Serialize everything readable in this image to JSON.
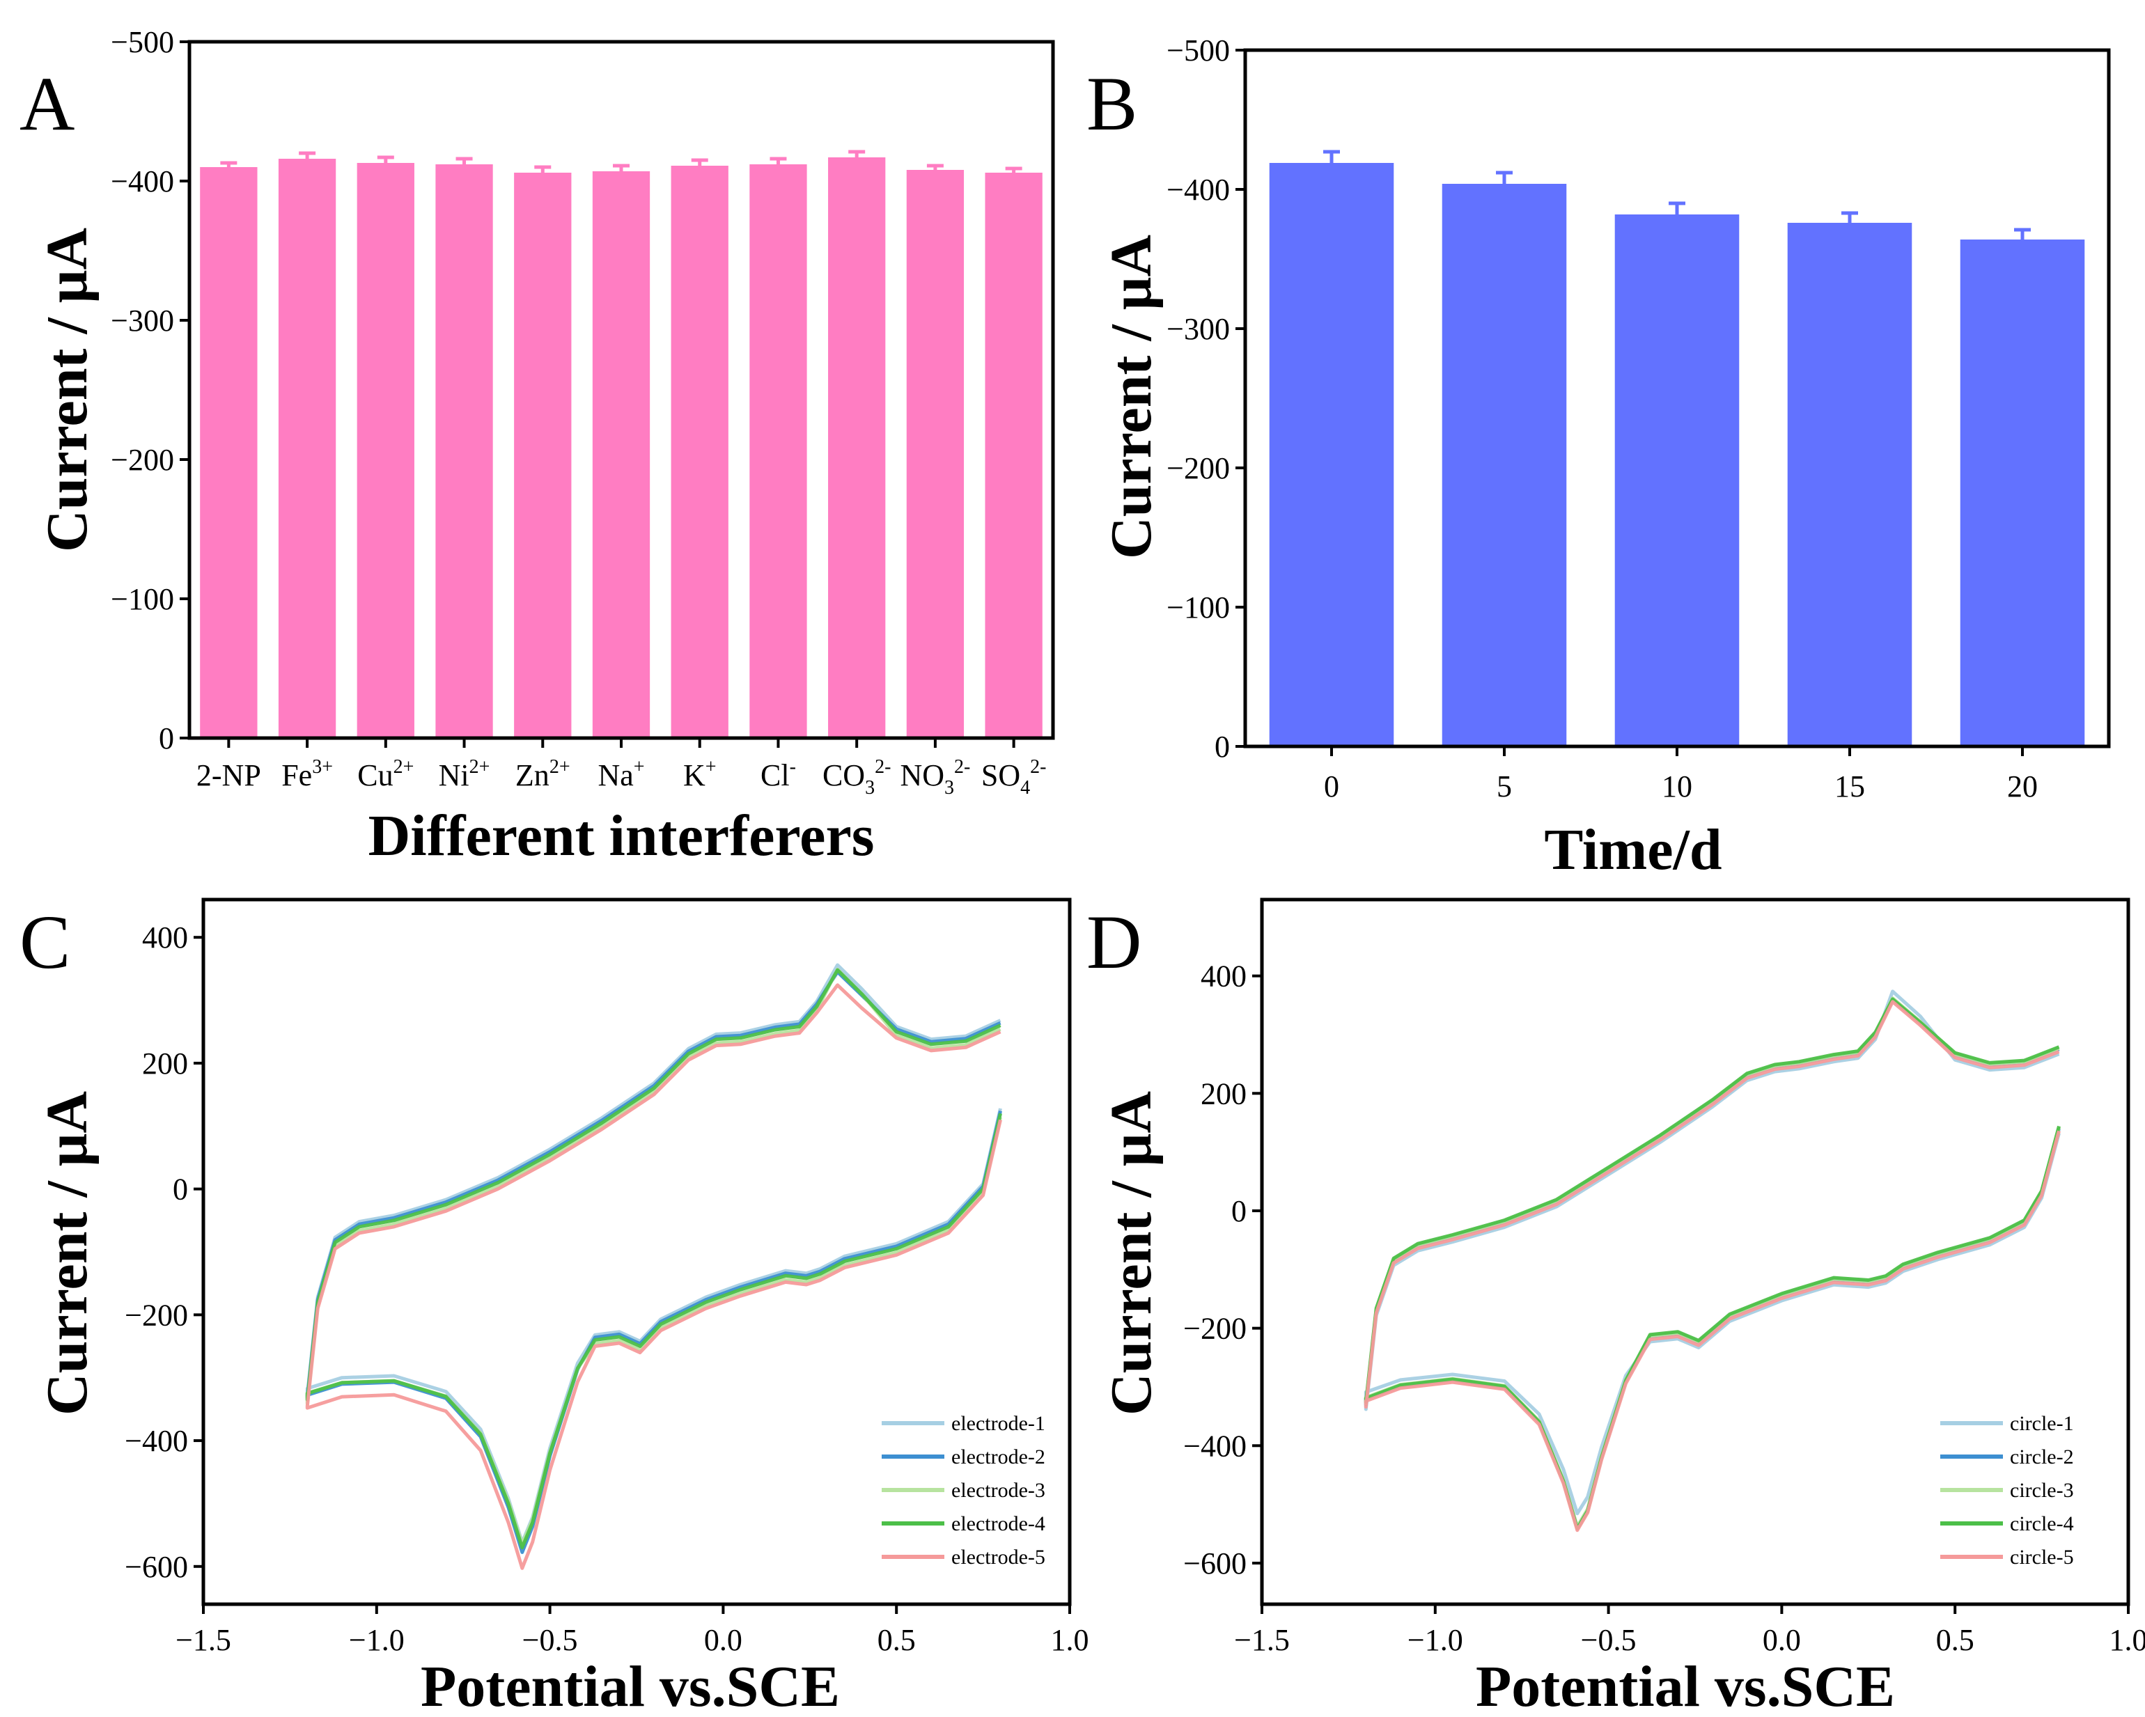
{
  "colors": {
    "panel_a_bar": "#ff7dc2",
    "panel_b_bar": "#6272ff",
    "series": [
      "#a6cfe3",
      "#3d8fd1",
      "#b7e39f",
      "#4cbf48",
      "#f59a9a"
    ]
  },
  "chart_data": [
    {
      "panel": "A",
      "type": "bar",
      "xlabel": "Different interferers",
      "ylabel": "Current / μA",
      "ylim": [
        0,
        -500
      ],
      "yticks": [
        0,
        -100,
        -200,
        -300,
        -400,
        -500
      ],
      "ytick_labels": [
        "0",
        "−100",
        "−200",
        "−300",
        "−400",
        "−500"
      ],
      "categories": [
        {
          "base": "2-NP",
          "sub": "",
          "sup": ""
        },
        {
          "base": "Fe",
          "sub": "",
          "sup": "3+"
        },
        {
          "base": "Cu",
          "sub": "",
          "sup": "2+"
        },
        {
          "base": "Ni",
          "sub": "",
          "sup": "2+"
        },
        {
          "base": "Zn",
          "sub": "",
          "sup": "2+"
        },
        {
          "base": "Na",
          "sub": "",
          "sup": "+"
        },
        {
          "base": "K",
          "sub": "",
          "sup": "+"
        },
        {
          "base": "Cl",
          "sub": "",
          "sup": "-"
        },
        {
          "base": "CO",
          "sub": "3",
          "sup": "2-"
        },
        {
          "base": "NO",
          "sub": "3",
          "sup": "2-"
        },
        {
          "base": "SO",
          "sub": "4",
          "sup": "2-"
        }
      ],
      "values": [
        -410,
        -416,
        -413,
        -412,
        -406,
        -407,
        -411,
        -412,
        -417,
        -408,
        -406
      ],
      "errors": [
        3,
        4,
        4,
        4,
        4,
        4,
        4,
        4,
        4,
        3,
        3
      ]
    },
    {
      "panel": "B",
      "type": "bar",
      "xlabel": "Time/d",
      "ylabel": "Current / μA",
      "ylim": [
        0,
        -500
      ],
      "yticks": [
        0,
        -100,
        -200,
        -300,
        -400,
        -500
      ],
      "ytick_labels": [
        "0",
        "−100",
        "−200",
        "−300",
        "−400",
        "−500"
      ],
      "categories": [
        "0",
        "5",
        "10",
        "15",
        "20"
      ],
      "values": [
        -419,
        -404,
        -382,
        -376,
        -364
      ],
      "errors": [
        8,
        8,
        8,
        7,
        7
      ]
    },
    {
      "panel": "C",
      "type": "line",
      "xlabel": "Potential vs.SCE",
      "ylabel": "Current / μA",
      "xlim": [
        -1.5,
        1.0
      ],
      "ylim": [
        -660,
        460
      ],
      "xticks": [
        -1.5,
        -1.0,
        -0.5,
        0.0,
        0.5,
        1.0
      ],
      "xtick_labels": [
        "−1.5",
        "−1.0",
        "−0.5",
        "0.0",
        "0.5",
        "1.0"
      ],
      "yticks": [
        -600,
        -400,
        -200,
        0,
        200,
        400
      ],
      "ytick_labels": [
        "−600",
        "−400",
        "−200",
        "0",
        "200",
        "400"
      ],
      "legend_position": "bottom-right",
      "series": [
        {
          "name": "electrode-1",
          "offset": 8,
          "peak_scale": 1.0
        },
        {
          "name": "electrode-2",
          "offset": 4,
          "peak_scale": 1.02
        },
        {
          "name": "electrode-3",
          "offset": -6,
          "peak_scale": 0.98
        },
        {
          "name": "electrode-4",
          "offset": 0,
          "peak_scale": 1.0
        },
        {
          "name": "electrode-5",
          "offset": -10,
          "peak_scale": 1.04
        }
      ],
      "cathodic_sweep": [
        [
          0.8,
          120
        ],
        [
          0.75,
          0
        ],
        [
          0.65,
          -60
        ],
        [
          0.5,
          -95
        ],
        [
          0.35,
          -115
        ],
        [
          0.28,
          -135
        ],
        [
          0.24,
          -142
        ],
        [
          0.18,
          -138
        ],
        [
          0.05,
          -160
        ],
        [
          -0.05,
          -180
        ],
        [
          -0.18,
          -215
        ],
        [
          -0.24,
          -250
        ],
        [
          -0.3,
          -235
        ],
        [
          -0.37,
          -240
        ],
        [
          -0.42,
          -285
        ],
        [
          -0.5,
          -420
        ],
        [
          -0.55,
          -530
        ],
        [
          -0.58,
          -570
        ],
        [
          -0.62,
          -500
        ],
        [
          -0.7,
          -390
        ],
        [
          -0.8,
          -330
        ],
        [
          -0.95,
          -305
        ],
        [
          -1.1,
          -308
        ],
        [
          -1.2,
          -325
        ]
      ],
      "anodic_sweep": [
        [
          -1.2,
          -335
        ],
        [
          -1.17,
          -180
        ],
        [
          -1.12,
          -85
        ],
        [
          -1.05,
          -60
        ],
        [
          -0.95,
          -50
        ],
        [
          -0.8,
          -25
        ],
        [
          -0.65,
          10
        ],
        [
          -0.5,
          55
        ],
        [
          -0.35,
          105
        ],
        [
          -0.2,
          160
        ],
        [
          -0.1,
          215
        ],
        [
          -0.02,
          238
        ],
        [
          0.05,
          240
        ],
        [
          0.15,
          253
        ],
        [
          0.22,
          258
        ],
        [
          0.27,
          290
        ],
        [
          0.33,
          348
        ],
        [
          0.4,
          310
        ],
        [
          0.5,
          250
        ],
        [
          0.6,
          230
        ],
        [
          0.7,
          235
        ],
        [
          0.8,
          260
        ]
      ]
    },
    {
      "panel": "D",
      "type": "line",
      "xlabel": "Potential vs.SCE",
      "ylabel": "Current / μA",
      "xlim": [
        -1.5,
        1.0
      ],
      "ylim": [
        -670,
        530
      ],
      "xticks": [
        -1.5,
        -1.0,
        -0.5,
        0.0,
        0.5,
        1.0
      ],
      "xtick_labels": [
        "−1.5",
        "−1.0",
        "−0.5",
        "0.0",
        "0.5",
        "1.0"
      ],
      "yticks": [
        -600,
        -400,
        -200,
        0,
        200,
        400
      ],
      "ytick_labels": [
        "−600",
        "−400",
        "−200",
        "0",
        "200",
        "400"
      ],
      "legend_position": "bottom-right",
      "series": [
        {
          "name": "circle-1",
          "offset": -8,
          "peak_scale": 0.94
        },
        {
          "name": "circle-2",
          "offset": 0,
          "peak_scale": 1.0
        },
        {
          "name": "circle-3",
          "offset": 2,
          "peak_scale": 1.0
        },
        {
          "name": "circle-4",
          "offset": 4,
          "peak_scale": 1.01
        },
        {
          "name": "circle-5",
          "offset": -4,
          "peak_scale": 1.0
        }
      ],
      "cathodic_sweep": [
        [
          0.8,
          140
        ],
        [
          0.75,
          30
        ],
        [
          0.7,
          -20
        ],
        [
          0.6,
          -50
        ],
        [
          0.45,
          -75
        ],
        [
          0.35,
          -95
        ],
        [
          0.3,
          -115
        ],
        [
          0.25,
          -122
        ],
        [
          0.15,
          -118
        ],
        [
          0.0,
          -145
        ],
        [
          -0.15,
          -180
        ],
        [
          -0.24,
          -225
        ],
        [
          -0.3,
          -210
        ],
        [
          -0.38,
          -215
        ],
        [
          -0.45,
          -290
        ],
        [
          -0.52,
          -420
        ],
        [
          -0.56,
          -510
        ],
        [
          -0.59,
          -540
        ],
        [
          -0.63,
          -460
        ],
        [
          -0.7,
          -360
        ],
        [
          -0.8,
          -300
        ],
        [
          -0.95,
          -288
        ],
        [
          -1.1,
          -298
        ],
        [
          -1.2,
          -320
        ]
      ],
      "anodic_sweep": [
        [
          -1.2,
          -330
        ],
        [
          -1.17,
          -170
        ],
        [
          -1.12,
          -85
        ],
        [
          -1.05,
          -60
        ],
        [
          -0.95,
          -45
        ],
        [
          -0.8,
          -20
        ],
        [
          -0.65,
          15
        ],
        [
          -0.5,
          70
        ],
        [
          -0.35,
          125
        ],
        [
          -0.2,
          185
        ],
        [
          -0.1,
          230
        ],
        [
          -0.02,
          245
        ],
        [
          0.05,
          250
        ],
        [
          0.15,
          262
        ],
        [
          0.22,
          268
        ],
        [
          0.27,
          300
        ],
        [
          0.32,
          360
        ],
        [
          0.4,
          320
        ],
        [
          0.5,
          265
        ],
        [
          0.6,
          248
        ],
        [
          0.7,
          252
        ],
        [
          0.8,
          275
        ]
      ]
    }
  ]
}
